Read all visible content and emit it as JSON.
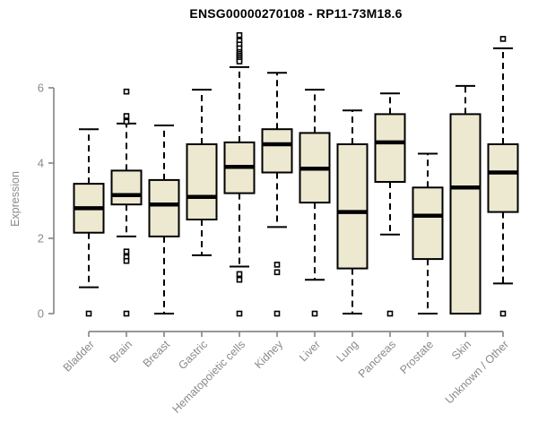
{
  "chart_data": {
    "type": "boxplot",
    "title": "ENSG00000270108 - RP11-73M18.6",
    "ylabel": "Expression",
    "xlabel": "",
    "yticks": [
      0,
      2,
      4,
      6
    ],
    "ylim": [
      -0.35,
      7.6
    ],
    "grid": false,
    "legend": "none",
    "categories": [
      "Bladder",
      "Brain",
      "Breast",
      "Gastric",
      "Hematopoietic cells",
      "Kidney",
      "Liver",
      "Lung",
      "Pancreas",
      "Prostate",
      "Skin",
      "Unknown / Other"
    ],
    "series": [
      {
        "category": "Bladder",
        "whisker_low": 0.7,
        "q1": 2.15,
        "median": 2.8,
        "q3": 3.45,
        "whisker_high": 4.9,
        "outliers": [
          0
        ]
      },
      {
        "category": "Brain",
        "whisker_low": 2.05,
        "q1": 2.9,
        "median": 3.15,
        "q3": 3.8,
        "whisker_high": 5.05,
        "outliers": [
          5.9,
          5.25,
          5.1,
          1.65,
          1.5,
          1.4,
          0
        ]
      },
      {
        "category": "Breast",
        "whisker_low": 0.0,
        "q1": 2.05,
        "median": 2.9,
        "q3": 3.55,
        "whisker_high": 5.0,
        "outliers": []
      },
      {
        "category": "Gastric",
        "whisker_low": 1.55,
        "q1": 2.5,
        "median": 3.1,
        "q3": 4.5,
        "whisker_high": 5.95,
        "outliers": []
      },
      {
        "category": "Hematopoietic cells",
        "whisker_low": 1.25,
        "q1": 3.2,
        "median": 3.9,
        "q3": 4.55,
        "whisker_high": 6.55,
        "outliers": [
          7.4,
          7.25,
          7.15,
          7.05,
          6.95,
          6.9,
          6.85,
          6.8,
          6.75,
          6.7,
          1.05,
          0.9,
          0
        ]
      },
      {
        "category": "Kidney",
        "whisker_low": 2.3,
        "q1": 3.75,
        "median": 4.5,
        "q3": 4.9,
        "whisker_high": 6.4,
        "outliers": [
          1.3,
          1.1,
          0
        ]
      },
      {
        "category": "Liver",
        "whisker_low": 0.9,
        "q1": 2.95,
        "median": 3.85,
        "q3": 4.8,
        "whisker_high": 5.95,
        "outliers": [
          0
        ]
      },
      {
        "category": "Lung",
        "whisker_low": 0.0,
        "q1": 1.2,
        "median": 2.7,
        "q3": 4.5,
        "whisker_high": 5.4,
        "outliers": []
      },
      {
        "category": "Pancreas",
        "whisker_low": 2.1,
        "q1": 3.5,
        "median": 4.55,
        "q3": 5.3,
        "whisker_high": 5.85,
        "outliers": [
          0
        ]
      },
      {
        "category": "Prostate",
        "whisker_low": 0.0,
        "q1": 1.45,
        "median": 2.6,
        "q3": 3.35,
        "whisker_high": 4.25,
        "outliers": []
      },
      {
        "category": "Skin",
        "whisker_low": 0.0,
        "q1": 0.0,
        "median": 3.35,
        "q3": 5.3,
        "whisker_high": 6.05,
        "outliers": []
      },
      {
        "category": "Unknown / Other",
        "whisker_low": 0.8,
        "q1": 2.7,
        "median": 3.75,
        "q3": 4.5,
        "whisker_high": 7.05,
        "outliers": [
          7.3,
          0
        ]
      }
    ],
    "colors": {
      "box_fill": "#ede8d0",
      "box_stroke": "#000000",
      "median": "#000000",
      "whisker": "#000000",
      "outlier_stroke": "#000000",
      "outlier_fill": "#ffffff",
      "axis": "#8a8a8a",
      "tick_label": "#8a8a8a",
      "title": "#000000",
      "background": "#ffffff"
    }
  }
}
